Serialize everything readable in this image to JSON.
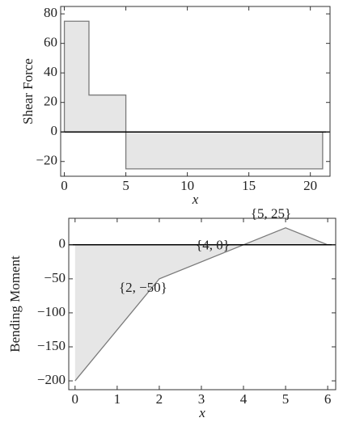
{
  "chart_data": [
    {
      "type": "area",
      "y_label": "Shear Force",
      "x_label": "x",
      "x": [
        0,
        0,
        2,
        2,
        5,
        5,
        21,
        21
      ],
      "values": [
        0,
        75,
        75,
        25,
        25,
        -25,
        -25,
        0
      ],
      "color": "#e6e6e6",
      "line_color": "#7a7a7a",
      "xlim": [
        -0.3,
        21.6
      ],
      "ylim": [
        -30,
        85
      ],
      "xticks": [
        0,
        5,
        10,
        15,
        20
      ],
      "yticks": [
        {
          "value": -20,
          "label": "−20"
        },
        0,
        20,
        40,
        60,
        80
      ]
    },
    {
      "type": "area",
      "y_label": "Bending Moment",
      "x_label": "x",
      "x": [
        0,
        2,
        4,
        5,
        6
      ],
      "values": [
        -200,
        -50,
        0,
        25,
        0
      ],
      "color": "#e6e6e6",
      "line_color": "#7a7a7a",
      "xlim": [
        -0.15,
        6.19
      ],
      "ylim": [
        -213,
        39
      ],
      "xticks": [
        0,
        1,
        2,
        3,
        4,
        5,
        6
      ],
      "yticks": [
        0,
        {
          "value": -50,
          "label": "−50"
        },
        {
          "value": -100,
          "label": "−100"
        },
        {
          "value": -150,
          "label": "−150"
        },
        {
          "value": -200,
          "label": "−200"
        }
      ],
      "annotations": [
        {
          "text": "{2, −50}",
          "x": 2,
          "y": -50
        },
        {
          "text": "{4, 0}",
          "x": 4,
          "y": 0
        },
        {
          "text": "{5, 25}",
          "x": 5,
          "y": 25
        }
      ]
    }
  ]
}
